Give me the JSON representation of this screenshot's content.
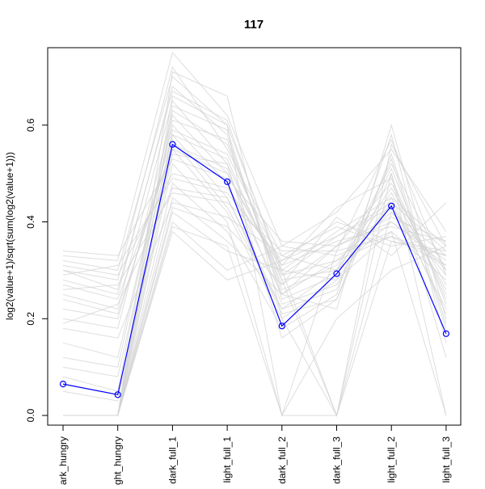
{
  "chart_data": {
    "type": "line",
    "title": "117",
    "ylabel": "log2(value+1)/sqrt(sum(log2(value+1)))",
    "xlabel": "",
    "categories": [
      "dark_hungry",
      "light_hungry",
      "dark_full_1",
      "light_full_1",
      "dark_full_2",
      "dark_full_3",
      "light_full_2",
      "light_full_3"
    ],
    "visible_category_labels": [
      "ark_hungry",
      "ght_hungry",
      "dark_full_1",
      "light_full_1",
      "dark_full_2",
      "dark_full_3",
      "light_full_2",
      "light_full_3"
    ],
    "ylim": [
      -0.02,
      0.76
    ],
    "yticks": [
      0.0,
      0.2,
      0.4,
      0.6
    ],
    "ytick_labels": [
      "0.0",
      "0.2",
      "0.4",
      "0.6"
    ],
    "grid": false,
    "highlight_series": {
      "values": [
        0.065,
        0.043,
        0.56,
        0.483,
        0.185,
        0.293,
        0.433,
        0.169
      ],
      "color": "#0000ff",
      "marker": "open-circle"
    },
    "background_series_color": "#d3d3d3",
    "background_series": [
      [
        0.3,
        0.28,
        0.72,
        0.55,
        0.33,
        0.3,
        0.52,
        0.3
      ],
      [
        0.32,
        0.3,
        0.7,
        0.6,
        0.3,
        0.38,
        0.45,
        0.35
      ],
      [
        0.28,
        0.25,
        0.68,
        0.58,
        0.25,
        0.35,
        0.48,
        0.25
      ],
      [
        0.33,
        0.32,
        0.75,
        0.62,
        0.35,
        0.42,
        0.55,
        0.38
      ],
      [
        0.25,
        0.22,
        0.65,
        0.52,
        0.28,
        0.3,
        0.4,
        0.32
      ],
      [
        0.2,
        0.18,
        0.62,
        0.5,
        0.3,
        0.28,
        0.38,
        0.28
      ],
      [
        0.15,
        0.12,
        0.6,
        0.48,
        0.25,
        0.32,
        0.42,
        0.3
      ],
      [
        0.1,
        0.08,
        0.58,
        0.45,
        0.22,
        0.3,
        0.46,
        0.26
      ],
      [
        0.05,
        0.03,
        0.55,
        0.42,
        0.2,
        0.28,
        0.44,
        0.22
      ],
      [
        0.0,
        0.0,
        0.52,
        0.4,
        0.0,
        0.0,
        0.5,
        0.0
      ],
      [
        0.0,
        0.0,
        0.48,
        0.38,
        0.18,
        0.25,
        0.58,
        0.15
      ],
      [
        0.0,
        0.0,
        0.45,
        0.36,
        0.25,
        0.22,
        0.6,
        0.2
      ],
      [
        0.0,
        0.0,
        0.42,
        0.34,
        0.3,
        0.0,
        0.56,
        0.35
      ],
      [
        0.0,
        0.0,
        0.4,
        0.3,
        0.35,
        0.33,
        0.38,
        0.0
      ],
      [
        0.0,
        0.0,
        0.38,
        0.28,
        0.32,
        0.4,
        0.36,
        0.34
      ],
      [
        0.0,
        0.0,
        0.66,
        0.6,
        0.0,
        0.2,
        0.3,
        0.35
      ],
      [
        0.0,
        0.0,
        0.63,
        0.56,
        0.28,
        0.0,
        0.42,
        0.33
      ],
      [
        0.22,
        0.2,
        0.58,
        0.53,
        0.27,
        0.35,
        0.4,
        0.31
      ],
      [
        0.27,
        0.24,
        0.55,
        0.5,
        0.29,
        0.37,
        0.43,
        0.29
      ],
      [
        0.31,
        0.29,
        0.5,
        0.47,
        0.31,
        0.36,
        0.39,
        0.36
      ],
      [
        0.26,
        0.27,
        0.46,
        0.44,
        0.34,
        0.34,
        0.37,
        0.33
      ],
      [
        0.18,
        0.16,
        0.44,
        0.41,
        0.33,
        0.39,
        0.35,
        0.37
      ],
      [
        0.0,
        0.0,
        0.57,
        0.43,
        0.22,
        0.26,
        0.53,
        0.18
      ],
      [
        0.0,
        0.0,
        0.54,
        0.52,
        0.16,
        0.24,
        0.5,
        0.12
      ],
      [
        0.12,
        0.1,
        0.61,
        0.57,
        0.26,
        0.31,
        0.47,
        0.27
      ],
      [
        0.08,
        0.05,
        0.64,
        0.59,
        0.24,
        0.29,
        0.51,
        0.23
      ],
      [
        0.34,
        0.33,
        0.53,
        0.49,
        0.36,
        0.35,
        0.41,
        0.36
      ],
      [
        0.29,
        0.31,
        0.49,
        0.46,
        0.32,
        0.37,
        0.44,
        0.34
      ],
      [
        0.0,
        0.0,
        0.71,
        0.66,
        0.2,
        0.0,
        0.36,
        0.33
      ],
      [
        0.0,
        0.0,
        0.59,
        0.54,
        0.31,
        0.43,
        0.49,
        0.24
      ],
      [
        0.24,
        0.21,
        0.56,
        0.51,
        0.23,
        0.27,
        0.45,
        0.21
      ],
      [
        0.19,
        0.23,
        0.47,
        0.45,
        0.21,
        0.24,
        0.54,
        0.19
      ],
      [
        0.0,
        0.0,
        0.39,
        0.35,
        0.0,
        0.34,
        0.57,
        0.29
      ],
      [
        0.0,
        0.0,
        0.43,
        0.39,
        0.27,
        0.41,
        0.33,
        0.44
      ],
      [
        0.3,
        0.26,
        0.67,
        0.61,
        0.29,
        0.32,
        0.37,
        0.31
      ]
    ]
  }
}
